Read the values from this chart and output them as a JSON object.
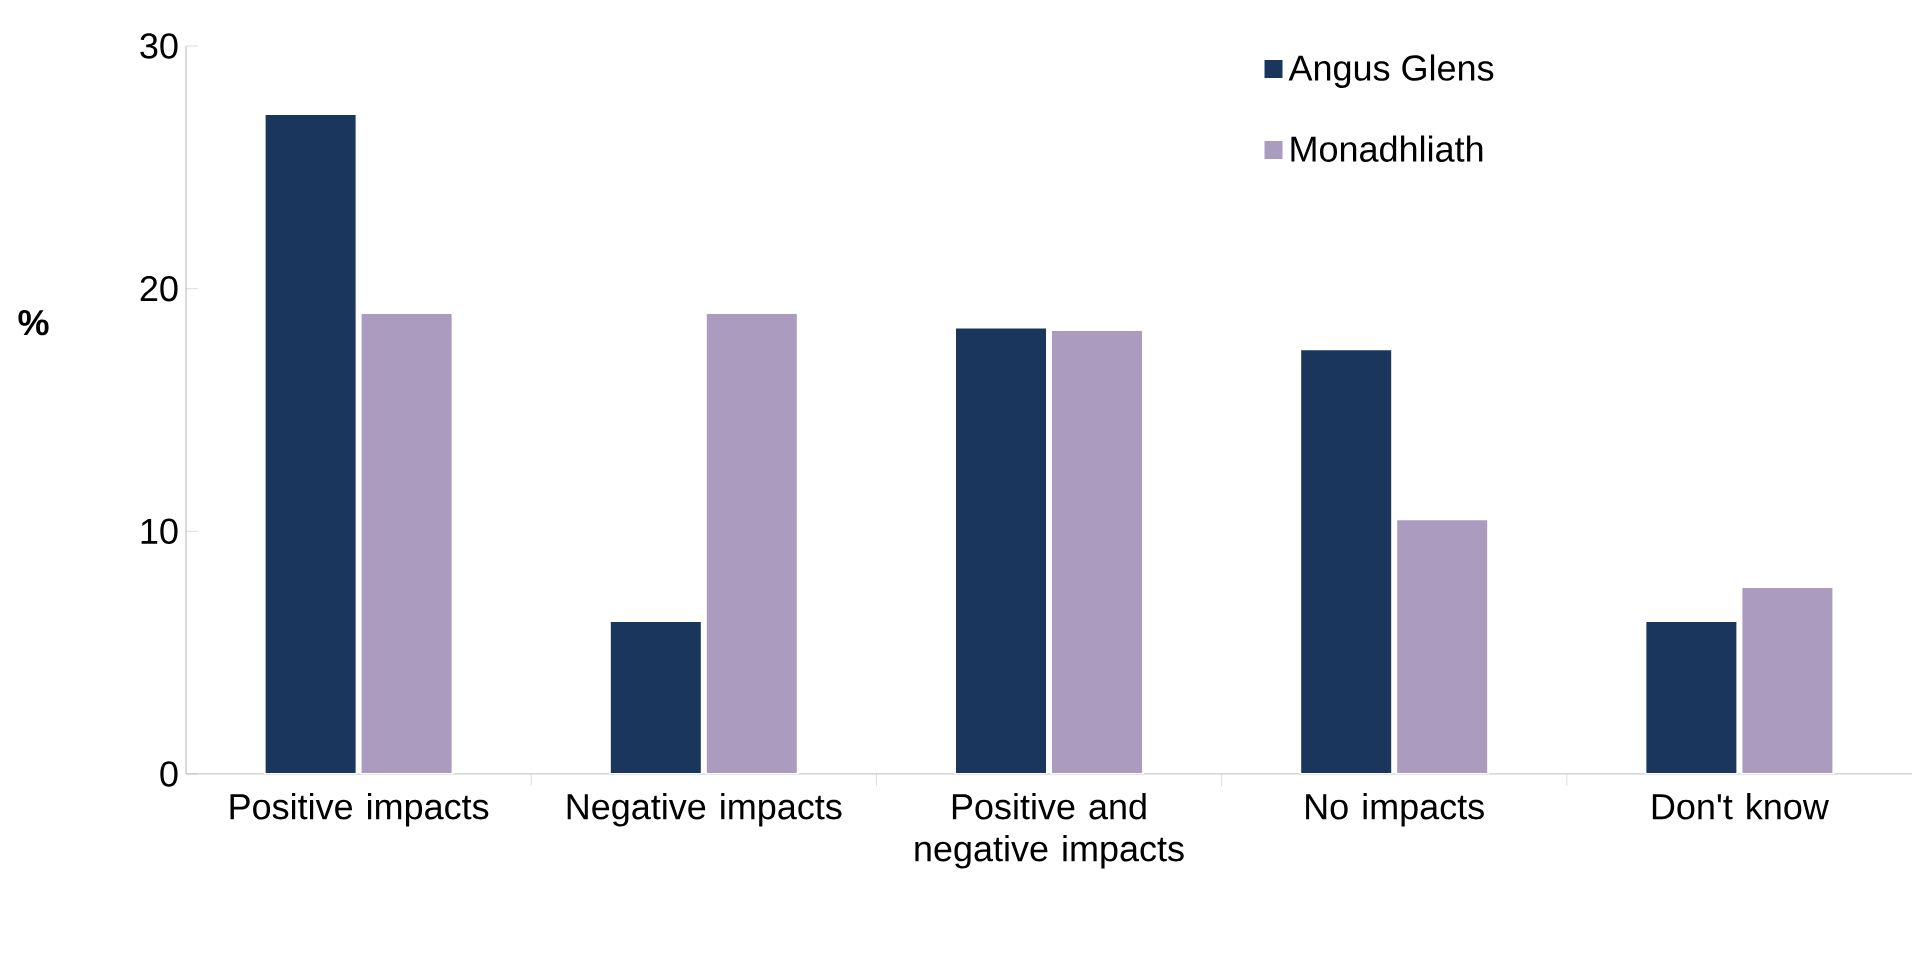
{
  "chart_data": {
    "type": "bar",
    "ylabel": "%",
    "categories": [
      "Positive impacts",
      "Negative impacts",
      "Positive and negative impacts",
      "No impacts",
      "Don't know"
    ],
    "series": [
      {
        "name": "Angus Glens",
        "color": "#1b365d",
        "values": [
          27.2,
          6.3,
          18.4,
          17.5,
          6.3
        ]
      },
      {
        "name": "Monadhliath",
        "color": "#ab9bbf",
        "values": [
          19.0,
          19.0,
          18.3,
          10.5,
          7.7
        ]
      }
    ],
    "ylim": [
      0,
      30
    ],
    "yticks": [
      0,
      10,
      20,
      30
    ],
    "legend": "top right",
    "grid": false
  }
}
